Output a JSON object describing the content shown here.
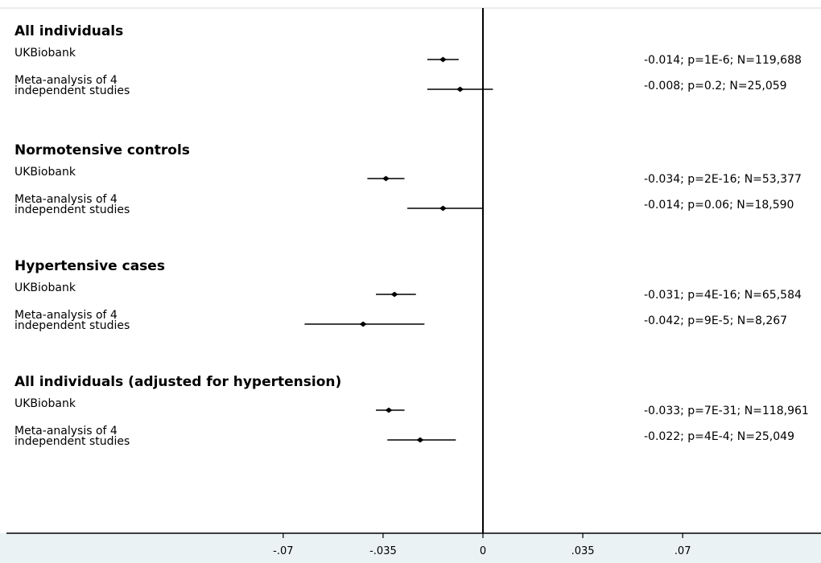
{
  "chart_data": {
    "type": "forest",
    "xlim": [
      -0.1,
      0.06
    ],
    "x_ticks": [
      -0.07,
      -0.035,
      0,
      0.035,
      0.07
    ],
    "x_tick_labels": [
      "-.07",
      "-.035",
      "0",
      ".035",
      ".07"
    ],
    "reference_line": 0,
    "groups": [
      {
        "title": "All individuals",
        "rows": [
          {
            "label": "UKBiobank",
            "estimate": -0.014,
            "ci": [
              -0.0195,
              -0.0085
            ],
            "result": "-0.014; p=1E-6; N=119,688"
          },
          {
            "label": [
              "Meta-analysis of 4",
              "independent studies"
            ],
            "estimate": -0.008,
            "ci": [
              -0.0195,
              0.0035
            ],
            "result": "-0.008; p=0.2; N=25,059"
          }
        ]
      },
      {
        "title": "Normotensive controls",
        "rows": [
          {
            "label": "UKBiobank",
            "estimate": -0.034,
            "ci": [
              -0.0405,
              -0.0275
            ],
            "result": "-0.034; p=2E-16; N=53,377"
          },
          {
            "label": [
              "Meta-analysis of 4",
              "independent studies"
            ],
            "estimate": -0.014,
            "ci": [
              -0.0265,
              0.0
            ],
            "result": "-0.014; p=0.06; N=18,590"
          }
        ]
      },
      {
        "title": "Hypertensive cases",
        "rows": [
          {
            "label": "UKBiobank",
            "estimate": -0.031,
            "ci": [
              -0.0375,
              -0.0235
            ],
            "result": "-0.031; p=4E-16; N=65,584"
          },
          {
            "label": [
              "Meta-analysis of 4",
              "independent studies"
            ],
            "estimate": -0.042,
            "ci": [
              -0.0625,
              -0.0205
            ],
            "result": "-0.042; p=9E-5; N=8,267"
          }
        ]
      },
      {
        "title": "All individuals (adjusted for hypertension)",
        "rows": [
          {
            "label": "UKBiobank",
            "estimate": -0.033,
            "ci": [
              -0.0375,
              -0.0275
            ],
            "result": "-0.033; p=7E-31; N=118,961"
          },
          {
            "label": [
              "Meta-analysis of 4",
              "independent studies"
            ],
            "estimate": -0.022,
            "ci": [
              -0.0335,
              -0.0095
            ],
            "result": "-0.022; p=4E-4; N=25,049"
          }
        ]
      }
    ]
  }
}
